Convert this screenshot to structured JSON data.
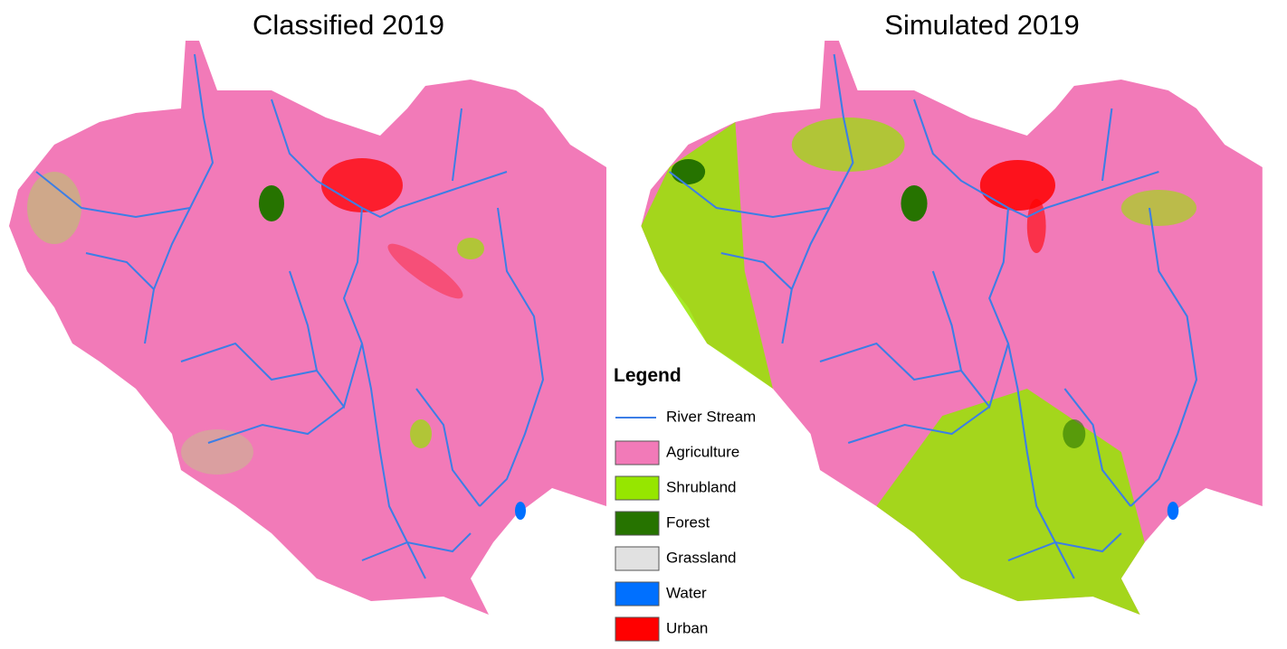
{
  "left_map": {
    "title": "Classified 2019"
  },
  "right_map": {
    "title": "Simulated 2019"
  },
  "legend": {
    "title": "Legend",
    "items": [
      {
        "label": "River Stream",
        "color": "#3c7ee6",
        "symbol": "line"
      },
      {
        "label": "Agriculture",
        "color": "#f27ab8",
        "symbol": "patch"
      },
      {
        "label": "Shrubland",
        "color": "#96e600",
        "symbol": "patch"
      },
      {
        "label": "Forest",
        "color": "#267300",
        "symbol": "patch"
      },
      {
        "label": "Grassland",
        "color": "#e1e1e1",
        "symbol": "patch"
      },
      {
        "label": "Water",
        "color": "#0070ff",
        "symbol": "patch"
      },
      {
        "label": "Urban",
        "color": "#ff0000",
        "symbol": "patch"
      }
    ]
  }
}
